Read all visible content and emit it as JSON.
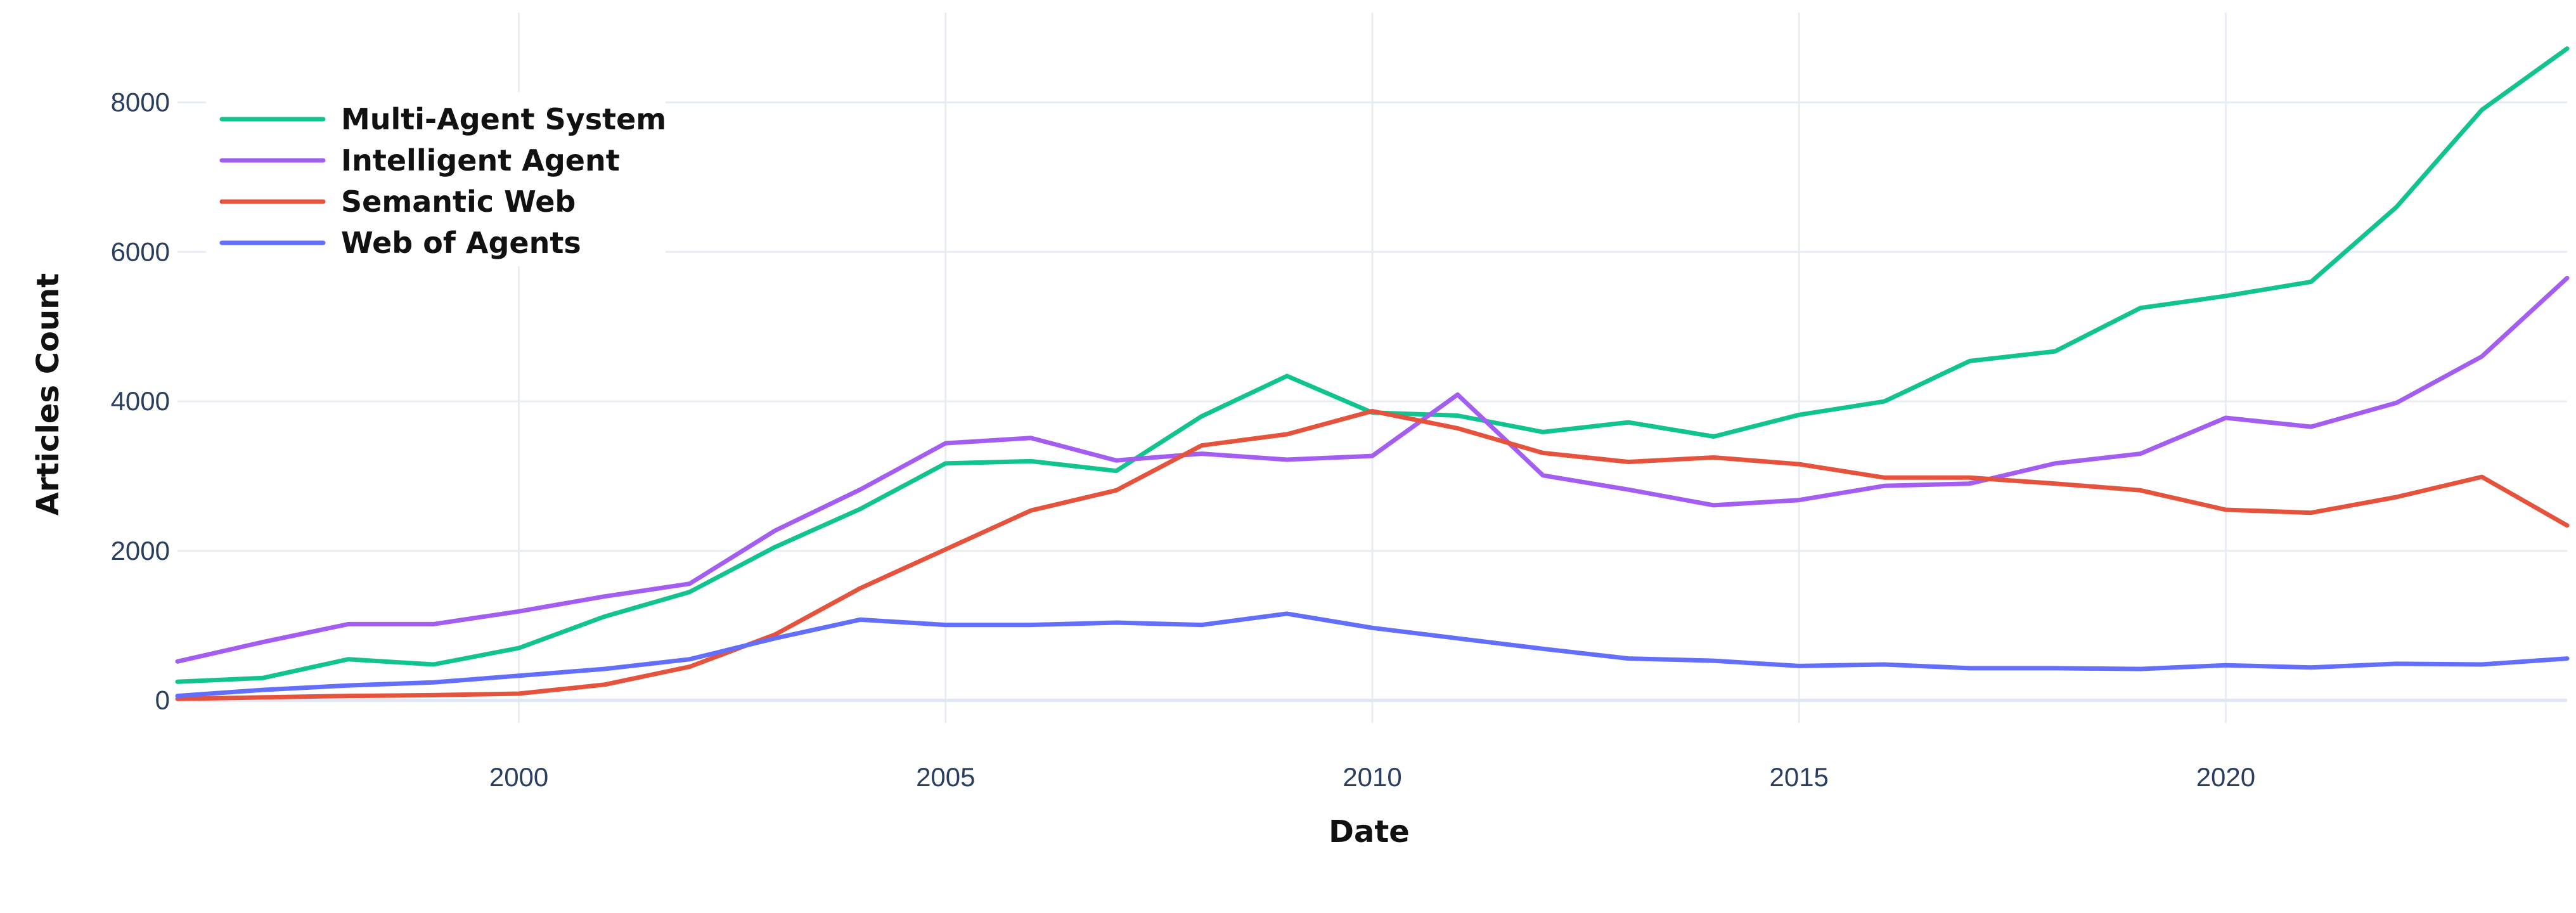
{
  "chart_data": {
    "type": "line",
    "xlabel": "Date",
    "ylabel": "Articles Count",
    "xlim": [
      1996,
      2024
    ],
    "ylim": [
      -300,
      9200
    ],
    "x_ticks": [
      2000,
      2005,
      2010,
      2015,
      2020
    ],
    "y_ticks": [
      0,
      2000,
      4000,
      6000,
      8000
    ],
    "grid": true,
    "legend_position": "top-left",
    "x": [
      1996,
      1997,
      1998,
      1999,
      2000,
      2001,
      2002,
      2003,
      2004,
      2005,
      2006,
      2007,
      2008,
      2009,
      2010,
      2011,
      2012,
      2013,
      2014,
      2015,
      2016,
      2017,
      2018,
      2019,
      2020,
      2021,
      2022,
      2023,
      2024
    ],
    "series": [
      {
        "name": "Multi-Agent System",
        "color": "#10c38f",
        "values": [
          250,
          300,
          550,
          480,
          700,
          1120,
          1450,
          2050,
          2560,
          3170,
          3200,
          3070,
          3800,
          4340,
          3850,
          3810,
          3590,
          3720,
          3530,
          3820,
          4000,
          4540,
          4670,
          5250,
          5410,
          5600,
          6600,
          7900,
          8720
        ]
      },
      {
        "name": "Intelligent Agent",
        "color": "#a35df0",
        "values": [
          520,
          780,
          1020,
          1020,
          1190,
          1390,
          1560,
          2270,
          2820,
          3440,
          3510,
          3210,
          3300,
          3220,
          3270,
          4090,
          3010,
          2820,
          2610,
          2680,
          2870,
          2900,
          3170,
          3300,
          3780,
          3660,
          3980,
          4600,
          5650
        ]
      },
      {
        "name": "Semantic Web",
        "color": "#e5533d",
        "values": [
          20,
          40,
          60,
          70,
          90,
          210,
          450,
          880,
          1500,
          2020,
          2540,
          2810,
          3410,
          3560,
          3870,
          3640,
          3310,
          3190,
          3250,
          3160,
          2980,
          2980,
          2900,
          2810,
          2550,
          2510,
          2720,
          2990,
          2340
        ]
      },
      {
        "name": "Web of Agents",
        "color": "#636efa",
        "values": [
          60,
          140,
          200,
          240,
          330,
          420,
          550,
          830,
          1080,
          1010,
          1010,
          1040,
          1010,
          1160,
          970,
          830,
          690,
          560,
          530,
          460,
          480,
          430,
          430,
          420,
          470,
          440,
          490,
          480,
          560
        ]
      }
    ]
  }
}
